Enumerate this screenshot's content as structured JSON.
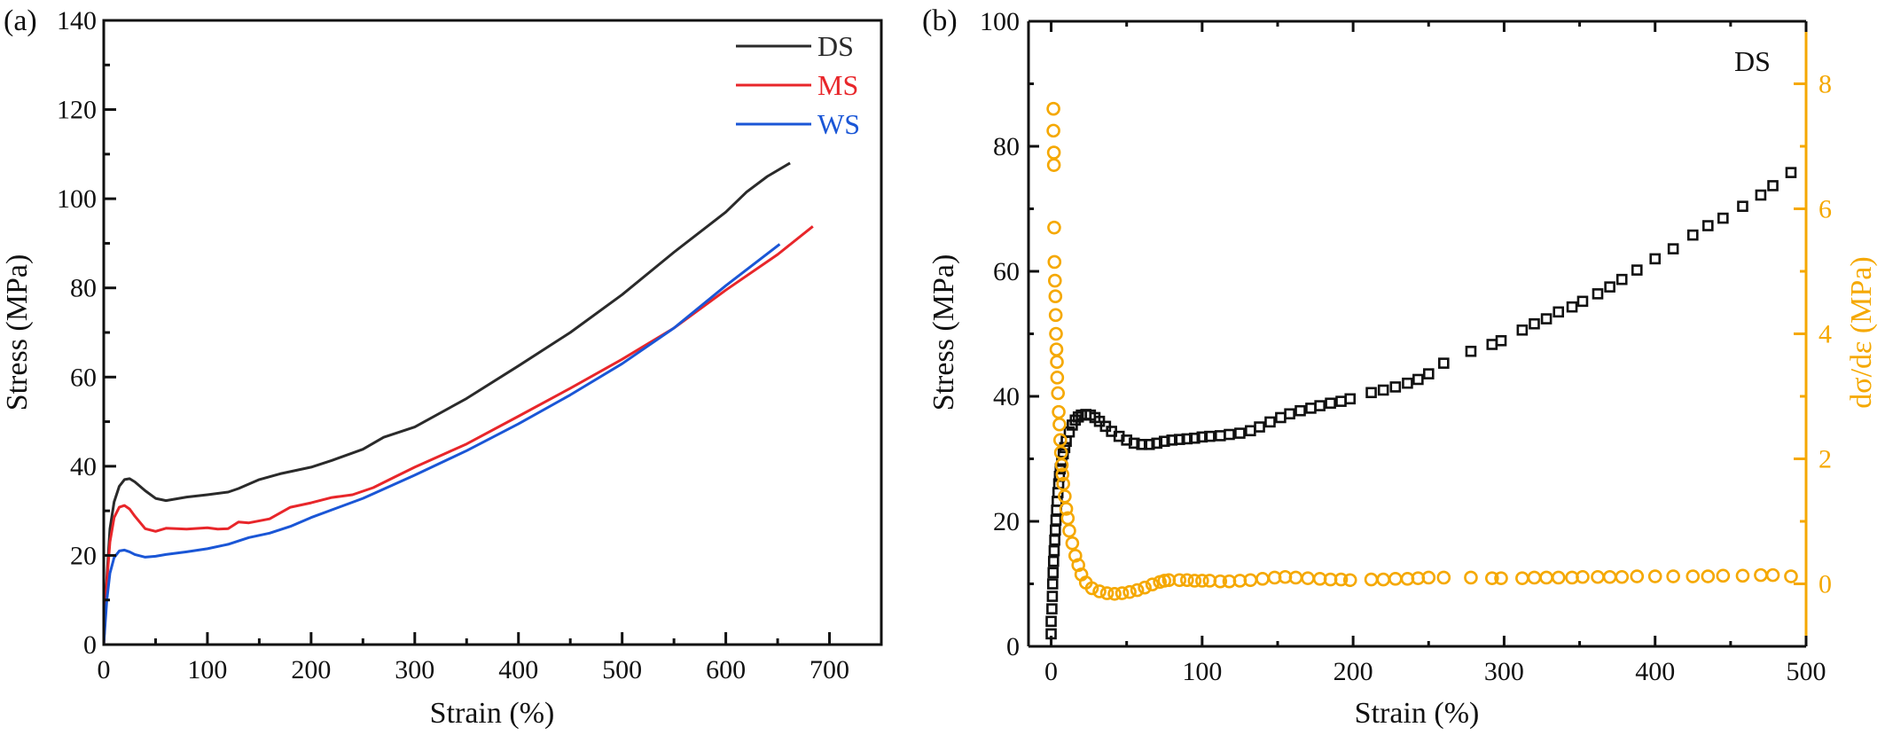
{
  "chart_data": [
    {
      "panel": "(a)",
      "type": "line",
      "title": "",
      "xlabel": "Strain (%)",
      "ylabel": "Stress (MPa)",
      "xlim": [
        0,
        750
      ],
      "ylim": [
        0,
        140
      ],
      "xticks": [
        0,
        100,
        200,
        300,
        400,
        500,
        600,
        700
      ],
      "yticks": [
        0,
        20,
        40,
        60,
        80,
        100,
        120,
        140
      ],
      "grid": false,
      "legend_position": "top-right",
      "series": [
        {
          "name": "DS",
          "color": "#2a2a2a",
          "x": [
            0,
            3,
            6,
            10,
            15,
            20,
            25,
            30,
            40,
            50,
            60,
            70,
            80,
            100,
            120,
            130,
            150,
            170,
            200,
            220,
            250,
            270,
            300,
            350,
            400,
            450,
            500,
            550,
            600,
            620,
            640,
            662
          ],
          "y": [
            0,
            15,
            26,
            32,
            35.5,
            37,
            37.2,
            36.5,
            34.5,
            32.8,
            32.3,
            32.7,
            33.1,
            33.6,
            34.2,
            35,
            37,
            38.3,
            39.8,
            41.3,
            43.8,
            46.5,
            48.8,
            55.2,
            62.5,
            70,
            78.5,
            88,
            97,
            101.5,
            105,
            108
          ]
        },
        {
          "name": "MS",
          "color": "#e8262a",
          "x": [
            0,
            3,
            6,
            10,
            15,
            20,
            25,
            30,
            40,
            50,
            60,
            80,
            100,
            110,
            120,
            130,
            140,
            160,
            180,
            200,
            220,
            240,
            260,
            280,
            300,
            350,
            400,
            450,
            500,
            550,
            600,
            650,
            684
          ],
          "y": [
            0,
            14,
            23,
            28.5,
            30.8,
            31.2,
            30.4,
            28.8,
            26,
            25.4,
            26.1,
            25.9,
            26.2,
            25.9,
            26,
            27.5,
            27.3,
            28.2,
            30.8,
            31.8,
            33,
            33.6,
            35.2,
            37.5,
            39.8,
            45,
            51.2,
            57.5,
            64,
            71,
            79.5,
            87.5,
            93.8
          ]
        },
        {
          "name": "WS",
          "color": "#1a56d6",
          "x": [
            0,
            3,
            6,
            10,
            15,
            20,
            25,
            30,
            40,
            50,
            60,
            80,
            100,
            120,
            140,
            160,
            180,
            200,
            250,
            300,
            350,
            400,
            450,
            500,
            550,
            600,
            652
          ],
          "y": [
            0,
            10,
            16,
            19.5,
            21,
            21.2,
            20.8,
            20.2,
            19.6,
            19.8,
            20.2,
            20.8,
            21.5,
            22.5,
            24,
            25,
            26.5,
            28.5,
            32.8,
            38,
            43.5,
            49.5,
            56,
            63,
            71,
            80.5,
            89.8
          ]
        }
      ]
    },
    {
      "panel": "(b)",
      "type": "scatter",
      "title": "",
      "annotation": "DS",
      "xlabel": "Strain (%)",
      "ylabel": "Stress (MPa)",
      "y2label": "dσ/dε (MPa)",
      "xlim": [
        -15,
        500
      ],
      "ylim": [
        0,
        100
      ],
      "y2lim": [
        -1,
        9
      ],
      "xticks": [
        0,
        100,
        200,
        300,
        400,
        500
      ],
      "yticks": [
        0,
        20,
        40,
        60,
        80,
        100
      ],
      "y2ticks": [
        0,
        2,
        4,
        6,
        8
      ],
      "grid": false,
      "series": [
        {
          "name": "Stress",
          "axis": "left",
          "marker": "square",
          "color": "#111111",
          "x": [
            0,
            0,
            0.5,
            0.8,
            1,
            1.3,
            1.6,
            2,
            2.4,
            2.8,
            3.2,
            3.6,
            4,
            4.5,
            5,
            5.5,
            6,
            7,
            8,
            9,
            10,
            12,
            14,
            16,
            18,
            20,
            23,
            26,
            29,
            32,
            36,
            40,
            45,
            50,
            55,
            60,
            65,
            70,
            75,
            80,
            85,
            90,
            95,
            100,
            105,
            112,
            118,
            125,
            132,
            138,
            145,
            152,
            158,
            165,
            172,
            178,
            185,
            192,
            198,
            212,
            220,
            228,
            236,
            243,
            250,
            260,
            278,
            292,
            298,
            312,
            320,
            328,
            336,
            345,
            352,
            362,
            370,
            378,
            388,
            400,
            412,
            425,
            435,
            445,
            458,
            470,
            478,
            490
          ],
          "y": [
            2,
            4,
            6,
            8,
            10,
            11.8,
            13.6,
            15.3,
            17,
            18.6,
            20.2,
            21.8,
            23.2,
            24.6,
            26,
            27.2,
            28.4,
            29.6,
            30.8,
            31.8,
            32.8,
            34.3,
            35.4,
            36.2,
            36.7,
            37,
            37.1,
            37,
            36.6,
            36,
            35.2,
            34.4,
            33.6,
            33,
            32.5,
            32.3,
            32.3,
            32.5,
            32.8,
            33,
            33.1,
            33.2,
            33.3,
            33.5,
            33.6,
            33.7,
            33.9,
            34.1,
            34.5,
            35.1,
            35.9,
            36.6,
            37.2,
            37.7,
            38.1,
            38.5,
            38.9,
            39.2,
            39.6,
            40.6,
            41,
            41.5,
            42.1,
            42.7,
            43.6,
            45.3,
            47.2,
            48.3,
            48.9,
            50.6,
            51.6,
            52.4,
            53.5,
            54.3,
            55.2,
            56.4,
            57.5,
            58.7,
            60.2,
            62,
            63.6,
            65.8,
            67.3,
            68.5,
            70.4,
            72.2,
            73.7,
            75.8
          ]
        },
        {
          "name": "dσ/dε",
          "axis": "right",
          "marker": "circle",
          "color": "#f5a800",
          "x": [
            1.5,
            1.5,
            1.8,
            1.8,
            2,
            2.2,
            2.5,
            2.8,
            3,
            3.2,
            3.5,
            3.8,
            4,
            4.5,
            5,
            5.5,
            6,
            6.5,
            7,
            7.5,
            8,
            9,
            10,
            11,
            12,
            14,
            16,
            18,
            20,
            23,
            27,
            32,
            37,
            42,
            47,
            52,
            57,
            62,
            67,
            72,
            75,
            78,
            85,
            90,
            95,
            100,
            105,
            112,
            118,
            125,
            132,
            140,
            148,
            155,
            162,
            170,
            178,
            185,
            192,
            198,
            212,
            220,
            228,
            236,
            243,
            250,
            260,
            278,
            292,
            298,
            312,
            320,
            328,
            336,
            345,
            352,
            362,
            370,
            378,
            388,
            400,
            412,
            425,
            435,
            445,
            458,
            470,
            478,
            490
          ],
          "y": [
            7.6,
            7.25,
            6.9,
            6.7,
            5.7,
            5.15,
            4.85,
            4.6,
            4.3,
            4.0,
            3.75,
            3.55,
            3.3,
            3.05,
            2.75,
            2.55,
            2.3,
            2.1,
            1.9,
            1.75,
            1.6,
            1.4,
            1.2,
            1.05,
            0.85,
            0.65,
            0.45,
            0.3,
            0.15,
            0.02,
            -0.07,
            -0.12,
            -0.15,
            -0.16,
            -0.15,
            -0.13,
            -0.1,
            -0.06,
            -0.01,
            0.03,
            0.05,
            0.06,
            0.06,
            0.06,
            0.05,
            0.05,
            0.05,
            0.04,
            0.04,
            0.05,
            0.06,
            0.08,
            0.1,
            0.11,
            0.1,
            0.09,
            0.08,
            0.07,
            0.07,
            0.06,
            0.07,
            0.07,
            0.08,
            0.08,
            0.09,
            0.1,
            0.1,
            0.1,
            0.09,
            0.09,
            0.09,
            0.1,
            0.1,
            0.1,
            0.1,
            0.11,
            0.11,
            0.11,
            0.11,
            0.12,
            0.12,
            0.12,
            0.12,
            0.12,
            0.13,
            0.13,
            0.14,
            0.14,
            0.12
          ]
        }
      ]
    }
  ],
  "labels": {
    "panel_a": "(a)",
    "panel_b": "(b)",
    "a_xlabel": "Strain (%)",
    "a_ylabel": "Stress (MPa)",
    "b_xlabel": "Strain (%)",
    "b_ylabel": "Stress (MPa)",
    "b_y2label": "dσ/dε (MPa)",
    "b_annotation": "DS",
    "legend": [
      "DS",
      "MS",
      "WS"
    ]
  }
}
